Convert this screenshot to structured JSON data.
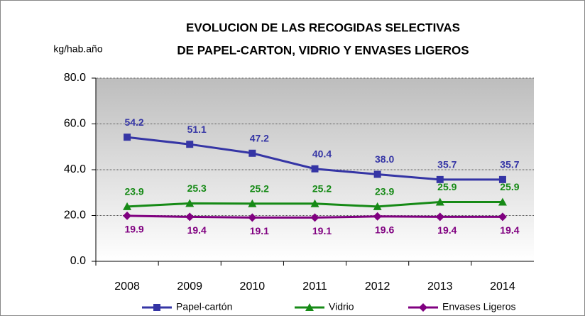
{
  "chart_data": {
    "type": "line",
    "title": [
      "EVOLUCION DE LAS RECOGIDAS SELECTIVAS",
      "DE PAPEL-CARTON, VIDRIO Y ENVASES LIGEROS"
    ],
    "y_label": "kg/hab.año",
    "categories": [
      "2008",
      "2009",
      "2010",
      "2011",
      "2012",
      "2013",
      "2014"
    ],
    "series": [
      {
        "name": "Papel-cartón",
        "color": "#3535a5",
        "marker": "square",
        "label_position": "above",
        "values": [
          54.2,
          51.1,
          47.2,
          40.4,
          38.0,
          35.7,
          35.7
        ],
        "value_labels": [
          "54.2",
          "51.1",
          "47.2",
          "40.4",
          "38.0",
          "35.7",
          "35.7"
        ]
      },
      {
        "name": "Vidrio",
        "color": "#168a16",
        "marker": "triangle",
        "label_position": "above",
        "values": [
          23.9,
          25.3,
          25.2,
          25.2,
          23.9,
          25.9,
          25.9
        ],
        "value_labels": [
          "23.9",
          "25.3",
          "25.2",
          "25.2",
          "23.9",
          "25.9",
          "25.9"
        ]
      },
      {
        "name": "Envases Ligeros",
        "color": "#800080",
        "marker": "diamond",
        "label_position": "below",
        "values": [
          19.9,
          19.4,
          19.1,
          19.1,
          19.6,
          19.4,
          19.4
        ],
        "value_labels": [
          "19.9",
          "19.4",
          "19.1",
          "19.1",
          "19.6",
          "19.4",
          "19.4"
        ]
      }
    ],
    "ylim": [
      0,
      80
    ],
    "yticks": [
      {
        "value": 0,
        "label": "0.0"
      },
      {
        "value": 20,
        "label": "20.0"
      },
      {
        "value": 40,
        "label": "40.0"
      },
      {
        "value": 60,
        "label": "60.0"
      },
      {
        "value": 80,
        "label": "80.0"
      }
    ],
    "grid": true,
    "legend": "bottom"
  }
}
